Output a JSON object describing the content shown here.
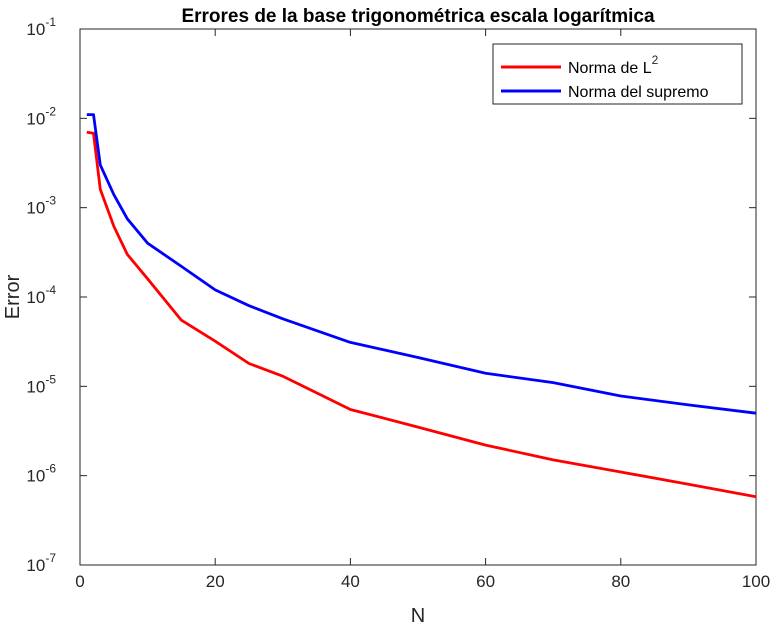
{
  "chart_data": {
    "type": "line",
    "title": "Errores de la base trigonométrica escala logarítmica",
    "xlabel": "N",
    "ylabel": "Error",
    "xlim": [
      0,
      100
    ],
    "ylim": [
      1e-07,
      0.1
    ],
    "yscale": "log",
    "xticks": [
      "0",
      "20",
      "40",
      "60",
      "80",
      "100"
    ],
    "yticks": [
      {
        "base": "10",
        "exp": "-7"
      },
      {
        "base": "10",
        "exp": "-6"
      },
      {
        "base": "10",
        "exp": "-5"
      },
      {
        "base": "10",
        "exp": "-4"
      },
      {
        "base": "10",
        "exp": "-3"
      },
      {
        "base": "10",
        "exp": "-2"
      },
      {
        "base": "10",
        "exp": "-1"
      }
    ],
    "grid": false,
    "legend_position": "top-right",
    "legend": [
      {
        "text": "Norma de L",
        "sup": "2"
      },
      {
        "text": "Norma del supremo",
        "sup": ""
      }
    ],
    "series": [
      {
        "name": "Norma de L²",
        "color": "#ff0000",
        "x": [
          1,
          2,
          3,
          5,
          7,
          10,
          15,
          20,
          25,
          30,
          40,
          50,
          60,
          70,
          80,
          90,
          100
        ],
        "y": [
          0.007,
          0.0068,
          0.0016,
          0.00062,
          0.0003,
          0.00016,
          5.5e-05,
          3.2e-05,
          1.8e-05,
          1.3e-05,
          5.5e-06,
          3.5e-06,
          2.2e-06,
          1.5e-06,
          1.1e-06,
          8e-07,
          5.8e-07
        ]
      },
      {
        "name": "Norma del supremo",
        "color": "#0000ff",
        "x": [
          1,
          2,
          3,
          5,
          7,
          10,
          15,
          20,
          25,
          30,
          40,
          50,
          60,
          70,
          80,
          90,
          100
        ],
        "y": [
          0.011,
          0.011,
          0.003,
          0.0014,
          0.00075,
          0.0004,
          0.00022,
          0.00012,
          8e-05,
          5.7e-05,
          3.1e-05,
          2.1e-05,
          1.4e-05,
          1.1e-05,
          7.8e-06,
          6.2e-06,
          5e-06
        ]
      }
    ]
  }
}
